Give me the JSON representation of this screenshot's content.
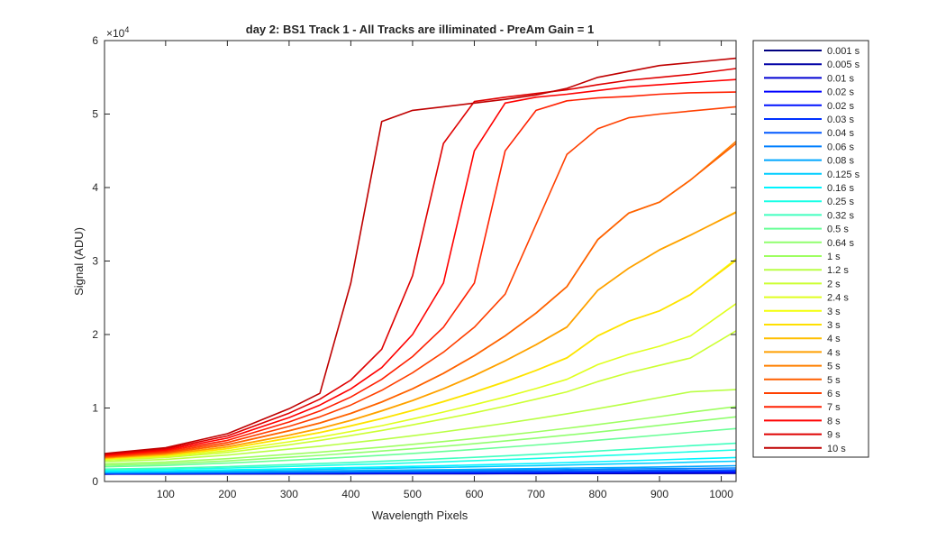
{
  "chart_data": {
    "type": "line",
    "title": "day 2: BS1  Track 1 - All Tracks are illiminated - PreAm Gain = 1",
    "xlabel": "Wavelength Pixels",
    "ylabel": "Signal (ADU)",
    "y_exponent_label": "×10",
    "y_exponent_power": "4",
    "xlim": [
      1,
      1024
    ],
    "ylim": [
      0,
      60000
    ],
    "x_ticks": [
      100,
      200,
      300,
      400,
      500,
      600,
      700,
      800,
      900,
      1000
    ],
    "y_ticks": [
      0,
      10000,
      20000,
      30000,
      40000,
      50000,
      60000
    ],
    "y_tick_labels": [
      "0",
      "1",
      "2",
      "3",
      "4",
      "5",
      "6"
    ],
    "grid": false,
    "legend_position": "outside-right",
    "x": [
      1,
      100,
      200,
      300,
      350,
      400,
      450,
      500,
      550,
      600,
      650,
      700,
      750,
      800,
      850,
      900,
      950,
      1024
    ],
    "series": [
      {
        "name": "0.001 s",
        "color": "#000080",
        "values": [
          1000,
          1010,
          1020,
          1030,
          1035,
          1040,
          1045,
          1050,
          1055,
          1060,
          1065,
          1070,
          1075,
          1080,
          1085,
          1090,
          1095,
          1100
        ]
      },
      {
        "name": "0.005 s",
        "color": "#0000a6",
        "values": [
          1020,
          1030,
          1045,
          1060,
          1065,
          1070,
          1075,
          1080,
          1085,
          1090,
          1095,
          1100,
          1105,
          1110,
          1115,
          1120,
          1125,
          1130
        ]
      },
      {
        "name": "0.01 s",
        "color": "#0000d3",
        "values": [
          1040,
          1050,
          1070,
          1090,
          1095,
          1100,
          1105,
          1110,
          1115,
          1120,
          1125,
          1130,
          1140,
          1150,
          1160,
          1170,
          1180,
          1190
        ]
      },
      {
        "name": "0.02 s",
        "color": "#0000ff",
        "values": [
          1060,
          1075,
          1100,
          1120,
          1130,
          1140,
          1150,
          1160,
          1170,
          1180,
          1190,
          1200,
          1215,
          1230,
          1245,
          1260,
          1275,
          1290
        ]
      },
      {
        "name": "0.02 s",
        "color": "#0012ff",
        "values": [
          1070,
          1085,
          1110,
          1130,
          1140,
          1150,
          1160,
          1170,
          1180,
          1190,
          1200,
          1215,
          1230,
          1245,
          1260,
          1275,
          1290,
          1310
        ]
      },
      {
        "name": "0.03 s",
        "color": "#0031ff",
        "values": [
          1100,
          1120,
          1150,
          1180,
          1195,
          1210,
          1225,
          1240,
          1255,
          1270,
          1290,
          1310,
          1330,
          1350,
          1370,
          1390,
          1410,
          1440
        ]
      },
      {
        "name": "0.04 s",
        "color": "#0058ff",
        "values": [
          1130,
          1155,
          1190,
          1230,
          1250,
          1270,
          1290,
          1310,
          1330,
          1350,
          1375,
          1400,
          1430,
          1460,
          1490,
          1520,
          1550,
          1590
        ]
      },
      {
        "name": "0.06 s",
        "color": "#007fff",
        "values": [
          1180,
          1210,
          1260,
          1320,
          1350,
          1380,
          1410,
          1440,
          1470,
          1500,
          1540,
          1580,
          1620,
          1660,
          1700,
          1740,
          1780,
          1840
        ]
      },
      {
        "name": "0.08 s",
        "color": "#00a6ff",
        "values": [
          1230,
          1270,
          1330,
          1410,
          1450,
          1490,
          1530,
          1570,
          1610,
          1650,
          1700,
          1750,
          1810,
          1860,
          1920,
          1980,
          2050,
          2150
        ]
      },
      {
        "name": "0.125 s",
        "color": "#00cdff",
        "values": [
          1320,
          1380,
          1480,
          1600,
          1660,
          1720,
          1790,
          1860,
          1930,
          2000,
          2080,
          2160,
          2250,
          2340,
          2430,
          2520,
          2620,
          2760
        ]
      },
      {
        "name": "0.16 s",
        "color": "#00f4ff",
        "values": [
          1390,
          1460,
          1580,
          1730,
          1810,
          1890,
          1970,
          2060,
          2150,
          2250,
          2350,
          2460,
          2580,
          2700,
          2820,
          2950,
          3080,
          3260
        ]
      },
      {
        "name": "0.25 s",
        "color": "#1affe6",
        "values": [
          1560,
          1660,
          1830,
          2050,
          2170,
          2290,
          2410,
          2540,
          2680,
          2830,
          2980,
          3140,
          3310,
          3480,
          3660,
          3850,
          4040,
          4300
        ]
      },
      {
        "name": "0.32 s",
        "color": "#41ffbf",
        "values": [
          1690,
          1810,
          2020,
          2300,
          2440,
          2590,
          2750,
          2920,
          3100,
          3290,
          3490,
          3700,
          3920,
          4150,
          4380,
          4620,
          4870,
          5200
        ]
      },
      {
        "name": "0.5 s",
        "color": "#69ff97",
        "values": [
          2000,
          2180,
          2500,
          2900,
          3100,
          3330,
          3570,
          3820,
          4090,
          4370,
          4660,
          4970,
          5290,
          5620,
          5960,
          6320,
          6690,
          7200
        ]
      },
      {
        "name": "0.64 s",
        "color": "#91ff6f",
        "values": [
          2200,
          2420,
          2800,
          3300,
          3560,
          3850,
          4150,
          4460,
          4790,
          5140,
          5510,
          5900,
          6310,
          6730,
          7170,
          7640,
          8120,
          8800
        ]
      },
      {
        "name": "1 s",
        "color": "#9eff61",
        "values": [
          2400,
          2650,
          3100,
          3700,
          4000,
          4330,
          4680,
          5050,
          5440,
          5850,
          6290,
          6750,
          7240,
          7750,
          8280,
          8840,
          9420,
          10200
        ]
      },
      {
        "name": "1.2 s",
        "color": "#b9ff45",
        "values": [
          2700,
          3000,
          3600,
          4400,
          4800,
          5250,
          5720,
          6220,
          6750,
          7320,
          7920,
          8550,
          9220,
          9920,
          10650,
          11420,
          12200,
          12500
        ]
      },
      {
        "name": "2 s",
        "color": "#ccff33",
        "values": [
          2900,
          3250,
          3950,
          5000,
          5600,
          6250,
          6950,
          7700,
          8500,
          9350,
          10250,
          11200,
          12200,
          13600,
          14800,
          15800,
          16800,
          20500
        ]
      },
      {
        "name": "2.4 s",
        "color": "#e0ff1f",
        "values": [
          3000,
          3400,
          4200,
          5400,
          6050,
          6800,
          7600,
          8500,
          9450,
          10450,
          11500,
          12650,
          13900,
          15900,
          17300,
          18400,
          19800,
          24200
        ]
      },
      {
        "name": "3 s",
        "color": "#f4ff0b",
        "values": [
          3100,
          3550,
          4450,
          5900,
          6650,
          7550,
          8550,
          9650,
          10850,
          12150,
          13550,
          15100,
          16800,
          19800,
          21800,
          23200,
          25400,
          30300
        ]
      },
      {
        "name": "3 s",
        "color": "#ffe000",
        "values": [
          3100,
          3560,
          4470,
          5920,
          6680,
          7580,
          8580,
          9680,
          10880,
          12180,
          13580,
          15130,
          16830,
          19830,
          21830,
          23230,
          25430,
          30100
        ]
      },
      {
        "name": "4 s",
        "color": "#ffbf00",
        "values": [
          3200,
          3700,
          4700,
          6300,
          7200,
          8300,
          9600,
          11000,
          12600,
          14400,
          16400,
          18600,
          21000,
          26000,
          29000,
          31500,
          33500,
          36700
        ]
      },
      {
        "name": "4 s",
        "color": "#ff9f00",
        "values": [
          3200,
          3710,
          4720,
          6320,
          7230,
          8330,
          9630,
          11030,
          12630,
          14430,
          16430,
          18630,
          21030,
          26030,
          29030,
          31530,
          33530,
          36600
        ]
      },
      {
        "name": "5 s",
        "color": "#ff8000",
        "values": [
          3300,
          3850,
          5000,
          6900,
          7950,
          9250,
          10800,
          12600,
          14700,
          17100,
          19800,
          22900,
          26500,
          32900,
          36500,
          38000,
          41000,
          46300
        ]
      },
      {
        "name": "5 s",
        "color": "#ff6000",
        "values": [
          3300,
          3860,
          5020,
          6920,
          7980,
          9280,
          10830,
          12630,
          14730,
          17130,
          19830,
          22930,
          26530,
          32930,
          36530,
          38030,
          41030,
          46000
        ]
      },
      {
        "name": "6 s",
        "color": "#ff4000",
        "values": [
          3400,
          4000,
          5300,
          7500,
          8800,
          10400,
          12400,
          14800,
          17600,
          21000,
          25500,
          35000,
          44500,
          48000,
          49500,
          50000,
          50400,
          51000
        ]
      },
      {
        "name": "7 s",
        "color": "#ff2000",
        "values": [
          3500,
          4150,
          5600,
          8100,
          9600,
          11500,
          13900,
          17000,
          21000,
          27000,
          45000,
          50500,
          51800,
          52200,
          52400,
          52700,
          52900,
          53000
        ]
      },
      {
        "name": "8 s",
        "color": "#ff0000",
        "values": [
          3600,
          4300,
          5900,
          8700,
          10400,
          12600,
          15500,
          20000,
          27000,
          45000,
          51500,
          52300,
          52700,
          53200,
          53700,
          54000,
          54300,
          54700
        ]
      },
      {
        "name": "9 s",
        "color": "#df0000",
        "values": [
          3700,
          4450,
          6200,
          9300,
          11200,
          13800,
          18000,
          28000,
          46000,
          51700,
          52300,
          52800,
          53300,
          54000,
          54600,
          55000,
          55400,
          56200
        ]
      },
      {
        "name": "10 s",
        "color": "#bf0000",
        "values": [
          3800,
          4600,
          6500,
          9900,
          12000,
          27000,
          49000,
          50500,
          51000,
          51500,
          52000,
          52600,
          53500,
          55000,
          55800,
          56600,
          57000,
          57600
        ]
      }
    ]
  }
}
